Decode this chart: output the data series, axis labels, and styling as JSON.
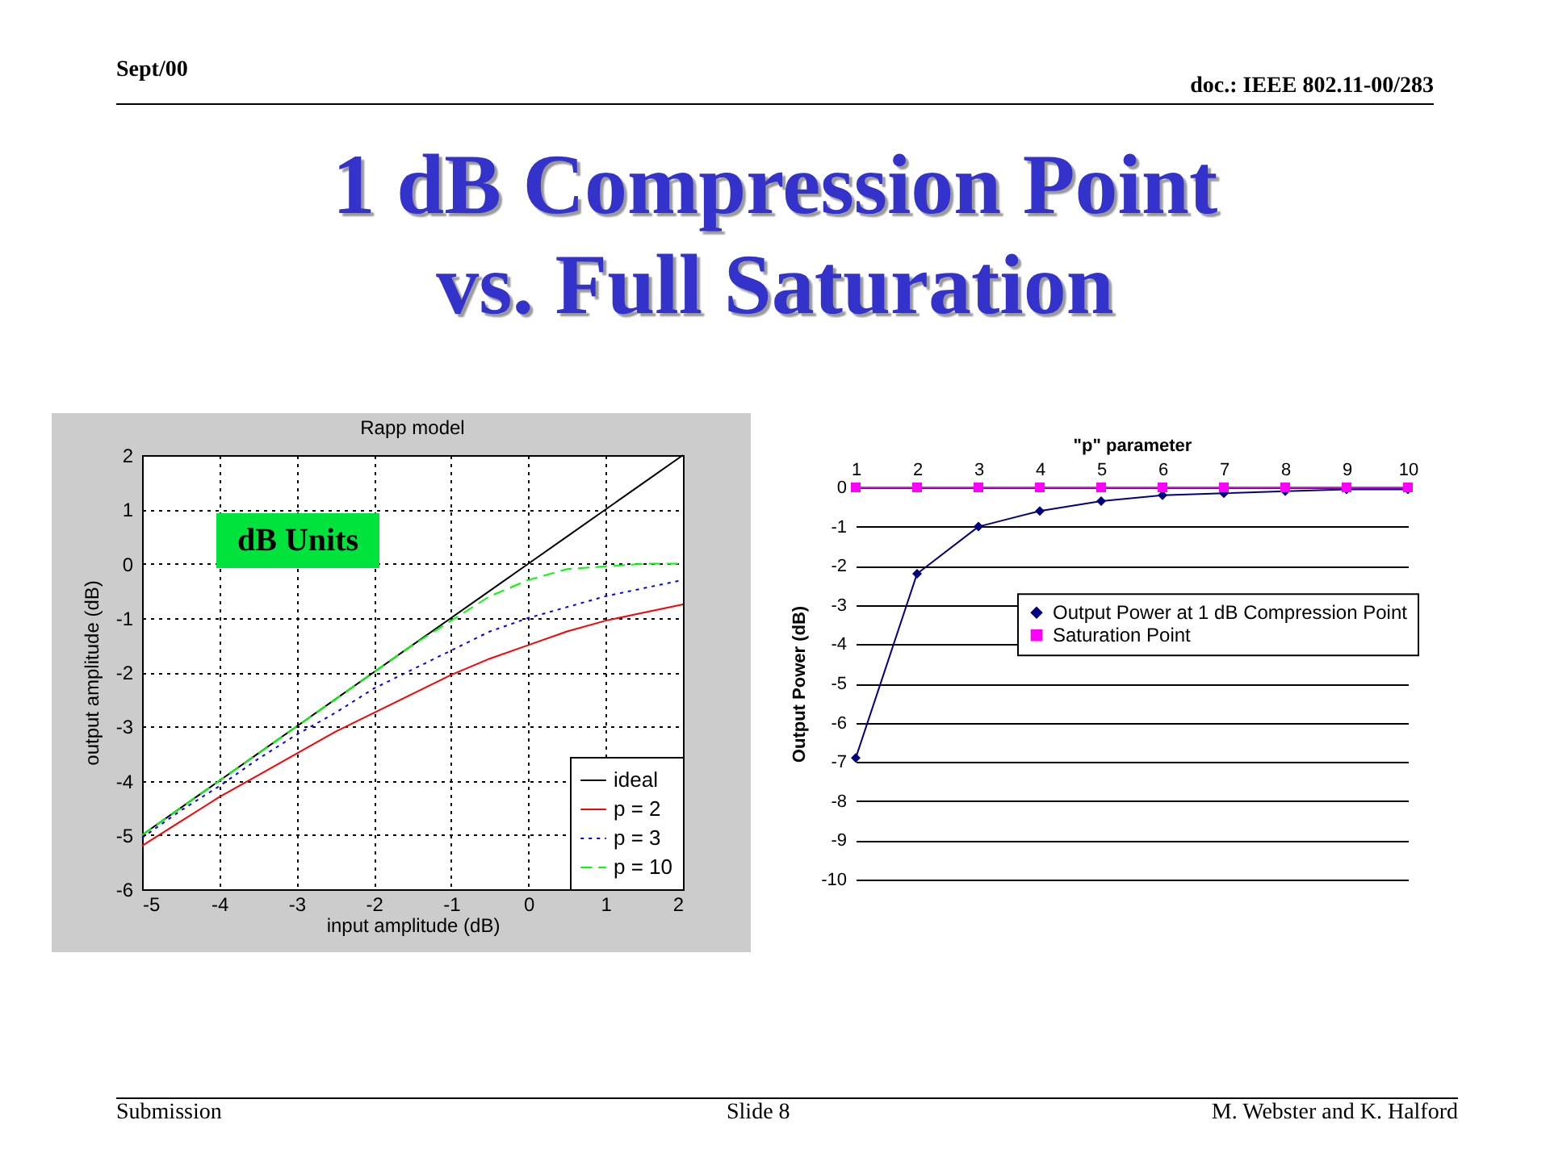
{
  "chart_data": [
    {
      "type": "line",
      "title": "Rapp model",
      "xlabel": "input amplitude (dB)",
      "ylabel": "output amplitude (dB)",
      "x": [
        -5,
        -4.5,
        -4,
        -3.5,
        -3,
        -2.5,
        -2,
        -1.5,
        -1,
        -0.5,
        0,
        0.5,
        1,
        1.5,
        2
      ],
      "xlim": [
        -5,
        2
      ],
      "xticks": [
        -5,
        -4,
        -3,
        -2,
        -1,
        0,
        1,
        2
      ],
      "ylim": [
        -6,
        2
      ],
      "yticks": [
        -6,
        -5,
        -4,
        -3,
        -2,
        -1,
        0,
        1,
        2
      ],
      "grid": true,
      "legend": "bottom right",
      "series": [
        {
          "name": "ideal",
          "color": "#000000",
          "line_style": "solid",
          "values": [
            -5,
            -4.5,
            -4,
            -3.5,
            -3,
            -2.5,
            -2,
            -1.5,
            -1,
            -0.5,
            0,
            0.5,
            1,
            1.5,
            2
          ]
        },
        {
          "name": "p = 2",
          "color": "#ff0000",
          "line_style": "solid",
          "values": [
            -5.2,
            -4.75,
            -4.3,
            -3.9,
            -3.5,
            -3.1,
            -2.75,
            -2.4,
            -2.05,
            -1.75,
            -1.5,
            -1.25,
            -1.05,
            -0.9,
            -0.75
          ]
        },
        {
          "name": "p = 3",
          "color": "#0000ff",
          "line_style": "dotted",
          "values": [
            -5.05,
            -4.55,
            -4.1,
            -3.6,
            -3.15,
            -2.75,
            -2.3,
            -1.95,
            -1.6,
            -1.25,
            -1,
            -0.8,
            -0.6,
            -0.45,
            -0.3
          ]
        },
        {
          "name": "p = 10",
          "color": "#00ff00",
          "line_style": "dashed",
          "values": [
            -5,
            -4.5,
            -4,
            -3.5,
            -3,
            -2.5,
            -2,
            -1.5,
            -1.05,
            -0.6,
            -0.3,
            -0.1,
            -0.05,
            0,
            0
          ]
        }
      ],
      "annotations": [
        "dB Units",
        "Sept/00",
        "doc.: IEEE 802.11-00/283",
        "1 dB Compression Point vs. Full Saturation",
        "Submission",
        "Slide 8",
        "M. Webster and K. Halford"
      ]
    },
    {
      "type": "line",
      "xlabel": "\"p\" parameter",
      "ylabel": "Output Power (dB)",
      "categories": [
        "1",
        "2",
        "3",
        "4",
        "5",
        "6",
        "7",
        "8",
        "9",
        "10"
      ],
      "ylim": [
        -10,
        0
      ],
      "yticks": [
        -10,
        -9,
        -8,
        -7,
        -6,
        -5,
        -4,
        -3,
        -2,
        -1,
        0
      ],
      "grid": "y",
      "legend": "right",
      "series": [
        {
          "name": "Output Power at 1 dB Compression Point",
          "color": "#000080",
          "marker": "diamond",
          "line_style": "solid",
          "values": [
            -6.9,
            -2.2,
            -1,
            -0.6,
            -0.35,
            -0.2,
            -0.15,
            -0.1,
            -0.05,
            -0.05
          ]
        },
        {
          "name": "Saturation Point",
          "color": "#ff00ff",
          "marker": "square",
          "line_style": "solid",
          "values": [
            0,
            0,
            0,
            0,
            0,
            0,
            0,
            0,
            0,
            0
          ]
        }
      ]
    }
  ]
}
